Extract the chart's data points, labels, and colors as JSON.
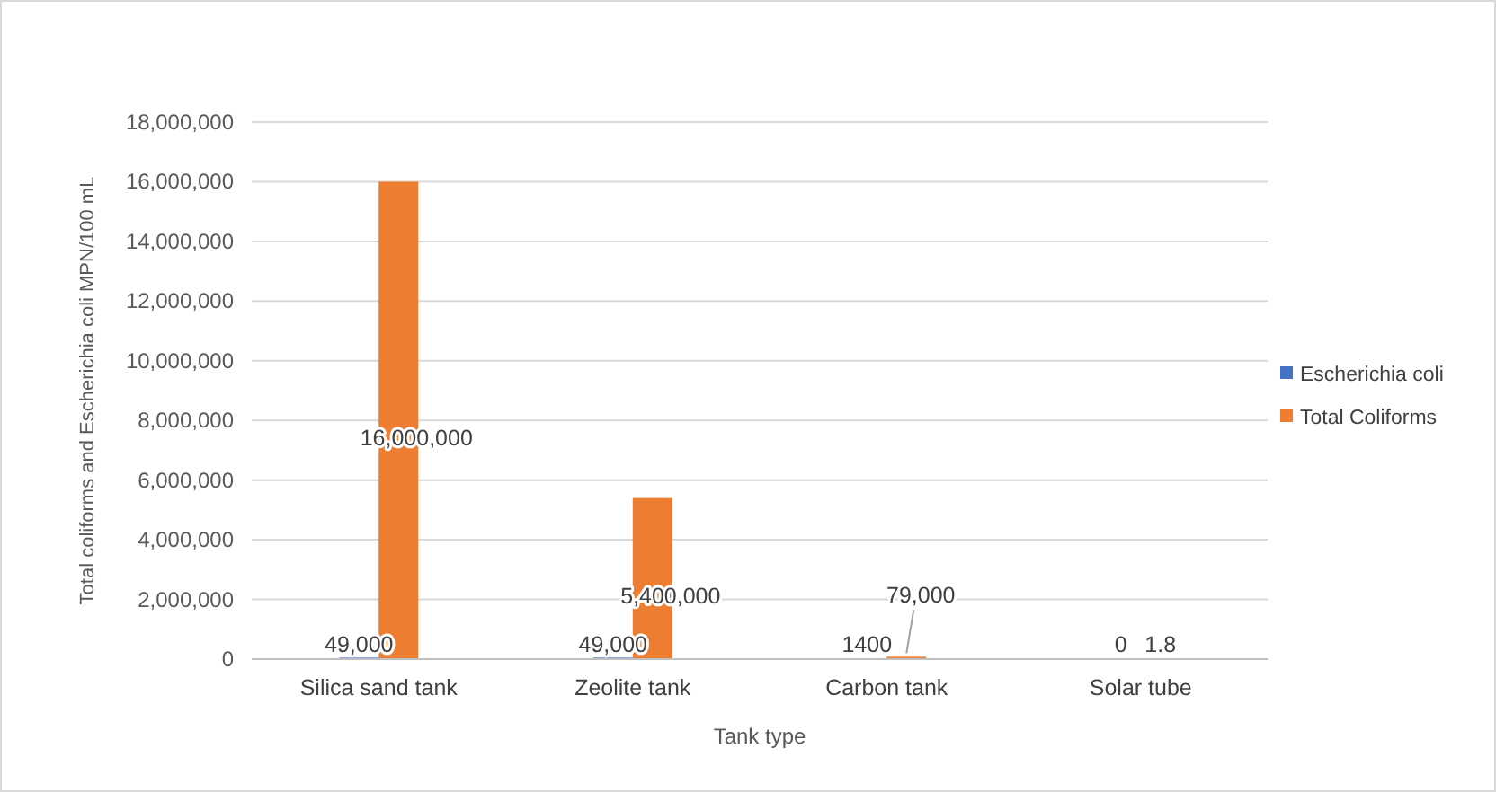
{
  "chart_data": {
    "type": "bar",
    "xlabel": "Tank type",
    "ylabel": "Total coliforms and Escherichia coli MPN/100 mL",
    "categories": [
      "Silica sand tank",
      "Zeolite tank",
      "Carbon tank",
      "Solar tube"
    ],
    "series": [
      {
        "name": "Escherichia coli",
        "color": "#4472c4",
        "values": [
          49000,
          49000,
          1400,
          0
        ],
        "value_labels": [
          "49,000",
          "49,000",
          "1400",
          "0"
        ]
      },
      {
        "name": "Total Coliforms",
        "color": "#ed7d31",
        "values": [
          16000000,
          5400000,
          79000,
          1.8
        ],
        "value_labels": [
          "16,000,000",
          "5,400,000",
          "79,000",
          "1.8"
        ]
      }
    ],
    "ylim": [
      0,
      18000000
    ],
    "yticks": [
      0,
      {
        "value": 2000000,
        "label": "2,000,000"
      },
      {
        "value": 4000000,
        "label": "4,000,000"
      },
      {
        "value": 6000000,
        "label": "6,000,000"
      },
      {
        "value": 8000000,
        "label": "8,000,000"
      },
      {
        "value": 10000000,
        "label": "10,000,000"
      },
      {
        "value": 12000000,
        "label": "12,000,000"
      },
      {
        "value": 14000000,
        "label": "14,000,000"
      },
      {
        "value": 16000000,
        "label": "16,000,000"
      },
      {
        "value": 18000000,
        "label": "18,000,000"
      }
    ],
    "grid": true,
    "legend": "right"
  }
}
